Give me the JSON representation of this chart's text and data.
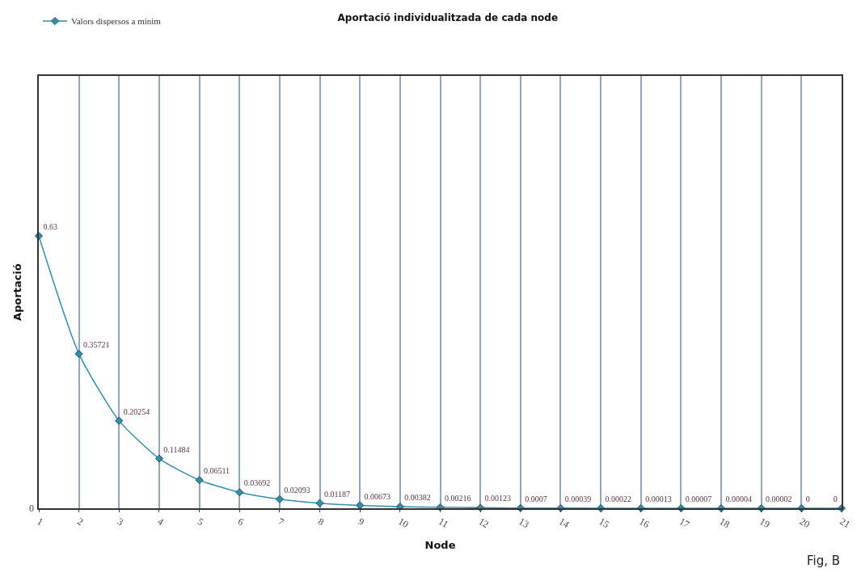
{
  "chart_data": {
    "type": "line",
    "title": "Aportació individualitzada de cada node",
    "xlabel": "Node",
    "ylabel": "Aportació",
    "x": [
      1,
      2,
      3,
      4,
      5,
      6,
      7,
      8,
      9,
      10,
      11,
      12,
      13,
      14,
      15,
      16,
      17,
      18,
      19,
      20,
      21
    ],
    "ylim": [
      0,
      1
    ],
    "series": [
      {
        "name": "Valors dispersos a mínim",
        "color": "#2f8fb0",
        "values": [
          0.63,
          0.35721,
          0.20254,
          0.11484,
          0.06511,
          0.03692,
          0.02093,
          0.01187,
          0.00673,
          0.00382,
          0.00216,
          0.00123,
          0.0007,
          0.00039,
          0.00022,
          0.00013,
          7e-05,
          4e-05,
          2e-05,
          0,
          0
        ],
        "value_labels": [
          "0.63",
          "0.35721",
          "0.20254",
          "0.11484",
          "0.06511",
          "0.03692",
          "0.02093",
          "0.01187",
          "0.00673",
          "0.00382",
          "0.00216",
          "0.00123",
          "0.0007",
          "0.00039",
          "0.00022",
          "0.00013",
          "0.00007",
          "0.00004",
          "0.00002",
          "0",
          "0"
        ]
      }
    ],
    "xlim": [
      1,
      21
    ],
    "xticks": [
      1,
      2,
      3,
      4,
      5,
      6,
      7,
      8,
      9,
      10,
      11,
      12,
      13,
      14,
      15,
      16,
      17,
      18,
      19,
      20,
      21
    ],
    "grid": "x",
    "legend": "top left",
    "marker": "diamond",
    "line_style": "solid",
    "annotations": [
      "0",
      "Fig, B"
    ]
  }
}
